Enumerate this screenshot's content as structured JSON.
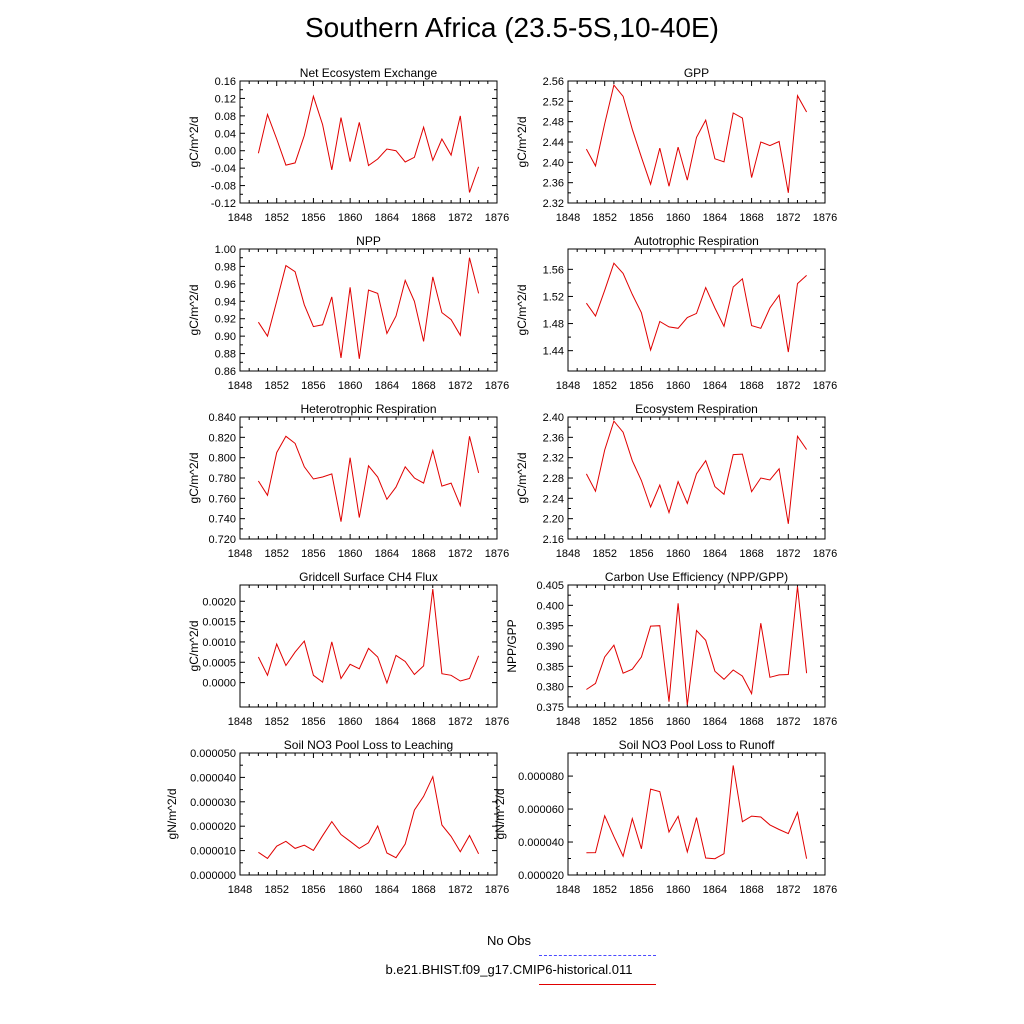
{
  "title": "Southern Africa (23.5-5S,10-40E)",
  "legend": {
    "obs_label": "No Obs",
    "obs_color": "#4a4aff",
    "model_label": "b.e21.BHIST.f09_g17.CMIP6-historical.011",
    "model_color": "#e00000"
  },
  "chart_data": [
    {
      "type": "line",
      "title": "Net Ecosystem Exchange",
      "ylabel": "gC/m^2/d",
      "xlim": [
        1848,
        1876
      ],
      "xticks": [
        "1848",
        "1852",
        "1856",
        "1860",
        "1864",
        "1868",
        "1872",
        "1876"
      ],
      "ylim": [
        -0.12,
        0.16
      ],
      "yticks": [
        "-0.12",
        "-0.08",
        "-0.04",
        "0.00",
        "0.04",
        "0.08",
        "0.12",
        "0.16"
      ],
      "x": [
        1850,
        1851,
        1852,
        1853,
        1854,
        1855,
        1856,
        1857,
        1858,
        1859,
        1860,
        1861,
        1862,
        1863,
        1864,
        1865,
        1866,
        1867,
        1868,
        1869,
        1870,
        1871,
        1872,
        1873,
        1874
      ],
      "series": [
        {
          "values": [
            -0.006,
            0.083,
            0.027,
            -0.033,
            -0.028,
            0.035,
            0.125,
            0.06,
            -0.044,
            0.076,
            -0.025,
            0.065,
            -0.034,
            -0.019,
            0.004,
            0.0,
            -0.026,
            -0.015,
            0.054,
            -0.022,
            0.027,
            -0.01,
            0.08,
            -0.096,
            -0.037
          ]
        }
      ]
    },
    {
      "type": "line",
      "title": "GPP",
      "ylabel": "gC/m^2/d",
      "xlim": [
        1848,
        1876
      ],
      "xticks": [
        "1848",
        "1852",
        "1856",
        "1860",
        "1864",
        "1868",
        "1872",
        "1876"
      ],
      "ylim": [
        2.32,
        2.56
      ],
      "yticks": [
        "2.32",
        "2.36",
        "2.40",
        "2.44",
        "2.48",
        "2.52",
        "2.56"
      ],
      "x": [
        1850,
        1851,
        1852,
        1853,
        1854,
        1855,
        1856,
        1857,
        1858,
        1859,
        1860,
        1861,
        1862,
        1863,
        1864,
        1865,
        1866,
        1867,
        1868,
        1869,
        1870,
        1871,
        1872,
        1873,
        1874
      ],
      "series": [
        {
          "values": [
            2.426,
            2.393,
            2.476,
            2.552,
            2.53,
            2.465,
            2.41,
            2.357,
            2.428,
            2.353,
            2.43,
            2.365,
            2.449,
            2.483,
            2.407,
            2.401,
            2.497,
            2.487,
            2.37,
            2.44,
            2.433,
            2.441,
            2.34,
            2.531,
            2.499
          ]
        }
      ]
    },
    {
      "type": "line",
      "title": "NPP",
      "ylabel": "gC/m^2/d",
      "xlim": [
        1848,
        1876
      ],
      "xticks": [
        "1848",
        "1852",
        "1856",
        "1860",
        "1864",
        "1868",
        "1872",
        "1876"
      ],
      "ylim": [
        0.86,
        1.0
      ],
      "yticks": [
        "0.86",
        "0.88",
        "0.90",
        "0.92",
        "0.94",
        "0.96",
        "0.98",
        "1.00"
      ],
      "x": [
        1850,
        1851,
        1852,
        1853,
        1854,
        1855,
        1856,
        1857,
        1858,
        1859,
        1860,
        1861,
        1862,
        1863,
        1864,
        1865,
        1866,
        1867,
        1868,
        1869,
        1870,
        1871,
        1872,
        1873,
        1874
      ],
      "series": [
        {
          "values": [
            0.916,
            0.9,
            0.94,
            0.981,
            0.974,
            0.936,
            0.911,
            0.913,
            0.945,
            0.875,
            0.956,
            0.874,
            0.953,
            0.949,
            0.903,
            0.923,
            0.964,
            0.94,
            0.894,
            0.968,
            0.927,
            0.919,
            0.901,
            0.99,
            0.949
          ]
        }
      ]
    },
    {
      "type": "line",
      "title": "Autotrophic Respiration",
      "ylabel": "gC/m^2/d",
      "xlim": [
        1848,
        1876
      ],
      "xticks": [
        "1848",
        "1852",
        "1856",
        "1860",
        "1864",
        "1868",
        "1872",
        "1876"
      ],
      "ylim": [
        1.41,
        1.59
      ],
      "yticks": [
        "1.44",
        "1.48",
        "1.52",
        "1.56"
      ],
      "ytickvals": [
        1.44,
        1.48,
        1.52,
        1.56
      ],
      "x": [
        1850,
        1851,
        1852,
        1853,
        1854,
        1855,
        1856,
        1857,
        1858,
        1859,
        1860,
        1861,
        1862,
        1863,
        1864,
        1865,
        1866,
        1867,
        1868,
        1869,
        1870,
        1871,
        1872,
        1873,
        1874
      ],
      "series": [
        {
          "values": [
            1.51,
            1.491,
            1.529,
            1.569,
            1.554,
            1.523,
            1.496,
            1.441,
            1.483,
            1.475,
            1.473,
            1.489,
            1.495,
            1.533,
            1.503,
            1.476,
            1.534,
            1.546,
            1.477,
            1.473,
            1.503,
            1.522,
            1.438,
            1.539,
            1.551
          ]
        }
      ]
    },
    {
      "type": "line",
      "title": "Heterotrophic Respiration",
      "ylabel": "gC/m^2/d",
      "xlim": [
        1848,
        1876
      ],
      "xticks": [
        "1848",
        "1852",
        "1856",
        "1860",
        "1864",
        "1868",
        "1872",
        "1876"
      ],
      "ylim": [
        0.72,
        0.84
      ],
      "yticks": [
        "0.720",
        "0.740",
        "0.760",
        "0.780",
        "0.800",
        "0.820",
        "0.840"
      ],
      "x": [
        1850,
        1851,
        1852,
        1853,
        1854,
        1855,
        1856,
        1857,
        1858,
        1859,
        1860,
        1861,
        1862,
        1863,
        1864,
        1865,
        1866,
        1867,
        1868,
        1869,
        1870,
        1871,
        1872,
        1873,
        1874
      ],
      "series": [
        {
          "values": [
            0.777,
            0.763,
            0.805,
            0.821,
            0.814,
            0.791,
            0.779,
            0.781,
            0.784,
            0.737,
            0.8,
            0.741,
            0.792,
            0.781,
            0.759,
            0.771,
            0.791,
            0.78,
            0.775,
            0.807,
            0.772,
            0.775,
            0.753,
            0.821,
            0.785
          ]
        }
      ]
    },
    {
      "type": "line",
      "title": "Ecosystem Respiration",
      "ylabel": "gC/m^2/d",
      "xlim": [
        1848,
        1876
      ],
      "xticks": [
        "1848",
        "1852",
        "1856",
        "1860",
        "1864",
        "1868",
        "1872",
        "1876"
      ],
      "ylim": [
        2.16,
        2.4
      ],
      "yticks": [
        "2.16",
        "2.20",
        "2.24",
        "2.28",
        "2.32",
        "2.36",
        "2.40"
      ],
      "x": [
        1850,
        1851,
        1852,
        1853,
        1854,
        1855,
        1856,
        1857,
        1858,
        1859,
        1860,
        1861,
        1862,
        1863,
        1864,
        1865,
        1866,
        1867,
        1868,
        1869,
        1870,
        1871,
        1872,
        1873,
        1874
      ],
      "series": [
        {
          "values": [
            2.288,
            2.254,
            2.335,
            2.392,
            2.37,
            2.314,
            2.275,
            2.223,
            2.266,
            2.212,
            2.273,
            2.23,
            2.288,
            2.314,
            2.263,
            2.248,
            2.326,
            2.327,
            2.253,
            2.28,
            2.276,
            2.298,
            2.19,
            2.362,
            2.336
          ]
        }
      ]
    },
    {
      "type": "line",
      "title": "Gridcell Surface CH4 Flux",
      "ylabel": "gC/m^2/d",
      "xlim": [
        1848,
        1876
      ],
      "xticks": [
        "1848",
        "1852",
        "1856",
        "1860",
        "1864",
        "1868",
        "1872",
        "1876"
      ],
      "ylim": [
        -0.0006,
        0.0024
      ],
      "yticks": [
        "0.0000",
        "0.0005",
        "0.0010",
        "0.0015",
        "0.0020"
      ],
      "ytickvals": [
        0.0,
        0.0005,
        0.001,
        0.0015,
        0.002
      ],
      "x": [
        1850,
        1851,
        1852,
        1853,
        1854,
        1855,
        1856,
        1857,
        1858,
        1859,
        1860,
        1861,
        1862,
        1863,
        1864,
        1865,
        1866,
        1867,
        1868,
        1869,
        1870,
        1871,
        1872,
        1873,
        1874
      ],
      "series": [
        {
          "values": [
            0.00063,
            0.00018,
            0.00095,
            0.00042,
            0.00075,
            0.00102,
            0.00018,
            1e-05,
            0.001,
            0.0001,
            0.00045,
            0.00034,
            0.00084,
            0.00063,
            -1e-05,
            0.00067,
            0.00052,
            0.0002,
            0.00041,
            0.0023,
            0.00022,
            0.00018,
            4e-05,
            0.0001,
            0.00066
          ]
        }
      ]
    },
    {
      "type": "line",
      "title": "Carbon Use Efficiency (NPP/GPP)",
      "ylabel": "NPP/GPP",
      "xlim": [
        1848,
        1876
      ],
      "xticks": [
        "1848",
        "1852",
        "1856",
        "1860",
        "1864",
        "1868",
        "1872",
        "1876"
      ],
      "ylim": [
        0.375,
        0.405
      ],
      "yticks": [
        "0.375",
        "0.380",
        "0.385",
        "0.390",
        "0.395",
        "0.400",
        "0.405"
      ],
      "x": [
        1850,
        1851,
        1852,
        1853,
        1854,
        1855,
        1856,
        1857,
        1858,
        1859,
        1860,
        1861,
        1862,
        1863,
        1864,
        1865,
        1866,
        1867,
        1868,
        1869,
        1870,
        1871,
        1872,
        1873,
        1874
      ],
      "series": [
        {
          "values": [
            0.3793,
            0.3808,
            0.3873,
            0.3902,
            0.3833,
            0.3843,
            0.3873,
            0.3949,
            0.395,
            0.3763,
            0.4005,
            0.3755,
            0.3938,
            0.3914,
            0.3838,
            0.3818,
            0.3841,
            0.3826,
            0.3783,
            0.3956,
            0.3823,
            0.3829,
            0.383,
            0.4046,
            0.3833
          ]
        }
      ]
    },
    {
      "type": "line",
      "title": "Soil NO3 Pool Loss to Leaching",
      "ylabel": "gN/m^2/d",
      "xlim": [
        1848,
        1876
      ],
      "xticks": [
        "1848",
        "1852",
        "1856",
        "1860",
        "1864",
        "1868",
        "1872",
        "1876"
      ],
      "ylim": [
        0.0,
        5e-05
      ],
      "yticks": [
        "0.000000",
        "0.000010",
        "0.000020",
        "0.000030",
        "0.000040",
        "0.000050"
      ],
      "x": [
        1850,
        1851,
        1852,
        1853,
        1854,
        1855,
        1856,
        1857,
        1858,
        1859,
        1860,
        1861,
        1862,
        1863,
        1864,
        1865,
        1866,
        1867,
        1868,
        1869,
        1870,
        1871,
        1872,
        1873,
        1874
      ],
      "series": [
        {
          "values": [
            9.3e-06,
            6.8e-06,
            1.18e-05,
            1.38e-05,
            1.09e-05,
            1.22e-05,
            1.01e-05,
            1.61e-05,
            2.19e-05,
            1.66e-05,
            1.38e-05,
            1.09e-05,
            1.32e-05,
            2.01e-05,
            9e-06,
            7.1e-06,
            1.27e-05,
            2.66e-05,
            3.22e-05,
            4.03e-05,
            2.05e-05,
            1.58e-05,
            9.5e-06,
            1.62e-05,
            8.7e-06
          ]
        }
      ]
    },
    {
      "type": "line",
      "title": "Soil NO3 Pool Loss to Runoff",
      "ylabel": "gN/m^2/d",
      "xlim": [
        1848,
        1876
      ],
      "xticks": [
        "1848",
        "1852",
        "1856",
        "1860",
        "1864",
        "1868",
        "1872",
        "1876"
      ],
      "ylim": [
        2e-05,
        9.4e-05
      ],
      "yticks": [
        "0.000020",
        "0.000040",
        "0.000060",
        "0.000080"
      ],
      "ytickvals": [
        2e-05,
        4e-05,
        6e-05,
        8e-05
      ],
      "x": [
        1850,
        1851,
        1852,
        1853,
        1854,
        1855,
        1856,
        1857,
        1858,
        1859,
        1860,
        1861,
        1862,
        1863,
        1864,
        1865,
        1866,
        1867,
        1868,
        1869,
        1870,
        1871,
        1872,
        1873,
        1874
      ],
      "series": [
        {
          "values": [
            3.35e-05,
            3.36e-05,
            5.59e-05,
            4.33e-05,
            3.14e-05,
            5.42e-05,
            3.59e-05,
            7.21e-05,
            7.05e-05,
            4.61e-05,
            5.56e-05,
            3.4e-05,
            5.48e-05,
            3.03e-05,
            2.99e-05,
            3.29e-05,
            8.65e-05,
            5.23e-05,
            5.57e-05,
            5.52e-05,
            5.04e-05,
            4.76e-05,
            4.51e-05,
            5.8e-05,
            2.99e-05
          ]
        }
      ]
    }
  ]
}
